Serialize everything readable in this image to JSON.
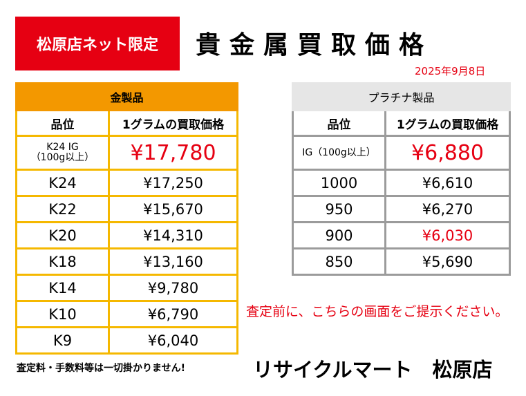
{
  "badge": "松原店ネット限定",
  "title": "貴金属買取価格",
  "date": "2025年9月8日",
  "gold": {
    "heading": "金製品",
    "col_grade": "品位",
    "col_price": "1グラムの買取価格",
    "rows": [
      {
        "grade": "K24 IG\n（100g以上）",
        "price": "¥17,780",
        "highlight": true
      },
      {
        "grade": "K24",
        "price": "¥17,250"
      },
      {
        "grade": "K22",
        "price": "¥15,670"
      },
      {
        "grade": "K20",
        "price": "¥14,310"
      },
      {
        "grade": "K18",
        "price": "¥13,160"
      },
      {
        "grade": "K14",
        "price": "¥9,780"
      },
      {
        "grade": "K10",
        "price": "¥6,790"
      },
      {
        "grade": "K9",
        "price": "¥6,040"
      }
    ]
  },
  "platinum": {
    "heading": "プラチナ製品",
    "col_grade": "品位",
    "col_price": "1グラムの買取価格",
    "rows": [
      {
        "grade": "IG（100g以上）",
        "price": "¥6,880",
        "highlight": true
      },
      {
        "grade": "1000",
        "price": "¥6,610"
      },
      {
        "grade": "950",
        "price": "¥6,270"
      },
      {
        "grade": "900",
        "price": "¥6,030",
        "highlight": true
      },
      {
        "grade": "850",
        "price": "¥5,690"
      }
    ]
  },
  "notice": "査定前に、こちらの画面をご提示ください。",
  "footnote": "査定料・手数料等は一切掛かりません!",
  "shop_name": "リサイクルマート　松原店",
  "colors": {
    "red": "#e60012",
    "gold_header": "#f39800",
    "gold_border": "#f5b800",
    "plat_header": "#e6e6e6",
    "plat_border": "#9b9b9b"
  }
}
